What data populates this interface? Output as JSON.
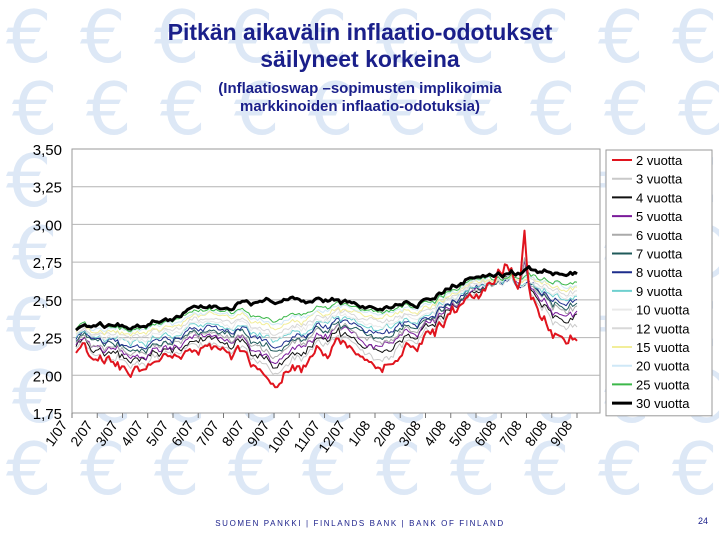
{
  "slide": {
    "title_line1": "Pitkän aikavälin inflaatio-odotukset",
    "title_line2": "säilyneet korkeina",
    "subtitle_line1": "(Inflaatioswap –sopimusten implikoimia",
    "subtitle_line2": "markkinoiden inflaatio-odotuksia)",
    "footer": "SUOMEN PANKKI | FINLANDS BANK | BANK OF FINLAND",
    "page_number": "24",
    "background_symbol": "€",
    "background_color": "#dde8f6",
    "title_color": "#1a1f8a"
  },
  "chart_data": {
    "type": "line",
    "ylim": [
      1.75,
      3.5
    ],
    "y_ticks": [
      "1,75",
      "2,00",
      "2,25",
      "2,50",
      "2,75",
      "3,00",
      "3,25",
      "3,50"
    ],
    "x_ticks": [
      "1/07",
      "2/07",
      "3/07",
      "4/07",
      "5/07",
      "6/07",
      "7/07",
      "8/07",
      "9/07",
      "10/07",
      "11/07",
      "12/07",
      "1/08",
      "2/08",
      "3/08",
      "4/08",
      "5/08",
      "6/08",
      "7/08",
      "8/08",
      "9/08"
    ],
    "grid": true,
    "legend_position": "right",
    "series": [
      {
        "name": "2 vuotta",
        "color": "#e0141e",
        "width": 2,
        "anchors": [
          2.2,
          2.12,
          2.05,
          2.08,
          2.1,
          2.18,
          2.12,
          2.15,
          1.95,
          2.0,
          2.12,
          2.2,
          2.1,
          2.02,
          2.18,
          2.3,
          2.45,
          2.55,
          2.7,
          2.55,
          2.3,
          2.22
        ]
      },
      {
        "name": "3 vuotta",
        "color": "#c9c9c9",
        "width": 1,
        "anchors": [
          2.22,
          2.15,
          2.09,
          2.11,
          2.13,
          2.21,
          2.15,
          2.18,
          2.02,
          2.06,
          2.16,
          2.24,
          2.14,
          2.08,
          2.22,
          2.33,
          2.47,
          2.56,
          2.67,
          2.58,
          2.38,
          2.3
        ]
      },
      {
        "name": "4 vuotta",
        "color": "#111111",
        "width": 1,
        "anchors": [
          2.23,
          2.17,
          2.12,
          2.14,
          2.16,
          2.24,
          2.18,
          2.21,
          2.07,
          2.1,
          2.19,
          2.27,
          2.18,
          2.13,
          2.25,
          2.35,
          2.48,
          2.57,
          2.65,
          2.6,
          2.42,
          2.36
        ]
      },
      {
        "name": "5 vuotta",
        "color": "#7a1a9a",
        "width": 1,
        "anchors": [
          2.24,
          2.19,
          2.14,
          2.16,
          2.18,
          2.26,
          2.2,
          2.23,
          2.11,
          2.13,
          2.22,
          2.29,
          2.21,
          2.17,
          2.28,
          2.37,
          2.49,
          2.58,
          2.64,
          2.61,
          2.45,
          2.4
        ]
      },
      {
        "name": "6 vuotta",
        "color": "#aaaaaa",
        "width": 1,
        "anchors": [
          2.25,
          2.21,
          2.16,
          2.18,
          2.2,
          2.28,
          2.23,
          2.26,
          2.14,
          2.16,
          2.25,
          2.31,
          2.24,
          2.2,
          2.3,
          2.39,
          2.5,
          2.58,
          2.63,
          2.62,
          2.48,
          2.43
        ]
      },
      {
        "name": "7 vuotta",
        "color": "#1f5a5a",
        "width": 1,
        "anchors": [
          2.26,
          2.23,
          2.18,
          2.2,
          2.22,
          2.3,
          2.25,
          2.28,
          2.17,
          2.19,
          2.27,
          2.33,
          2.27,
          2.23,
          2.32,
          2.4,
          2.51,
          2.59,
          2.63,
          2.63,
          2.5,
          2.46
        ]
      },
      {
        "name": "8 vuotta",
        "color": "#1d2d8c",
        "width": 1,
        "anchors": [
          2.27,
          2.25,
          2.2,
          2.22,
          2.24,
          2.32,
          2.27,
          2.3,
          2.2,
          2.22,
          2.29,
          2.35,
          2.3,
          2.26,
          2.34,
          2.41,
          2.52,
          2.6,
          2.62,
          2.63,
          2.52,
          2.48
        ]
      },
      {
        "name": "9 vuotta",
        "color": "#6fd0cf",
        "width": 1,
        "anchors": [
          2.28,
          2.26,
          2.22,
          2.24,
          2.26,
          2.34,
          2.29,
          2.32,
          2.23,
          2.25,
          2.31,
          2.37,
          2.32,
          2.29,
          2.36,
          2.43,
          2.53,
          2.6,
          2.62,
          2.64,
          2.54,
          2.5
        ]
      },
      {
        "name": "10 vuotta",
        "color": "#e9e9e9",
        "width": 1,
        "anchors": [
          2.29,
          2.27,
          2.24,
          2.26,
          2.28,
          2.36,
          2.31,
          2.34,
          2.25,
          2.27,
          2.33,
          2.39,
          2.34,
          2.31,
          2.38,
          2.44,
          2.54,
          2.61,
          2.62,
          2.64,
          2.56,
          2.52
        ]
      },
      {
        "name": "12 vuotta",
        "color": "#d8d8d8",
        "width": 1,
        "anchors": [
          2.3,
          2.29,
          2.26,
          2.28,
          2.3,
          2.38,
          2.33,
          2.36,
          2.28,
          2.3,
          2.35,
          2.41,
          2.36,
          2.34,
          2.4,
          2.46,
          2.55,
          2.62,
          2.63,
          2.65,
          2.58,
          2.55
        ]
      },
      {
        "name": "15 vuotta",
        "color": "#f2ee9a",
        "width": 1,
        "anchors": [
          2.31,
          2.3,
          2.28,
          2.3,
          2.32,
          2.4,
          2.36,
          2.39,
          2.31,
          2.33,
          2.38,
          2.43,
          2.39,
          2.37,
          2.42,
          2.48,
          2.56,
          2.63,
          2.63,
          2.66,
          2.6,
          2.57
        ]
      },
      {
        "name": "20 vuotta",
        "color": "#cfe8f7",
        "width": 1,
        "anchors": [
          2.32,
          2.32,
          2.3,
          2.32,
          2.34,
          2.42,
          2.38,
          2.41,
          2.34,
          2.36,
          2.4,
          2.45,
          2.41,
          2.39,
          2.44,
          2.49,
          2.57,
          2.64,
          2.64,
          2.67,
          2.62,
          2.59
        ]
      },
      {
        "name": "25 vuotta",
        "color": "#3cb84a",
        "width": 1,
        "anchors": [
          2.33,
          2.33,
          2.31,
          2.33,
          2.36,
          2.44,
          2.4,
          2.43,
          2.36,
          2.38,
          2.42,
          2.47,
          2.43,
          2.41,
          2.46,
          2.5,
          2.58,
          2.65,
          2.64,
          2.68,
          2.63,
          2.61
        ]
      },
      {
        "name": "30 vuotta",
        "color": "#000000",
        "width": 3,
        "anchors": [
          2.32,
          2.34,
          2.32,
          2.34,
          2.37,
          2.46,
          2.42,
          2.47,
          2.48,
          2.49,
          2.48,
          2.49,
          2.45,
          2.43,
          2.47,
          2.52,
          2.6,
          2.66,
          2.66,
          2.72,
          2.68,
          2.66
        ]
      }
    ]
  }
}
